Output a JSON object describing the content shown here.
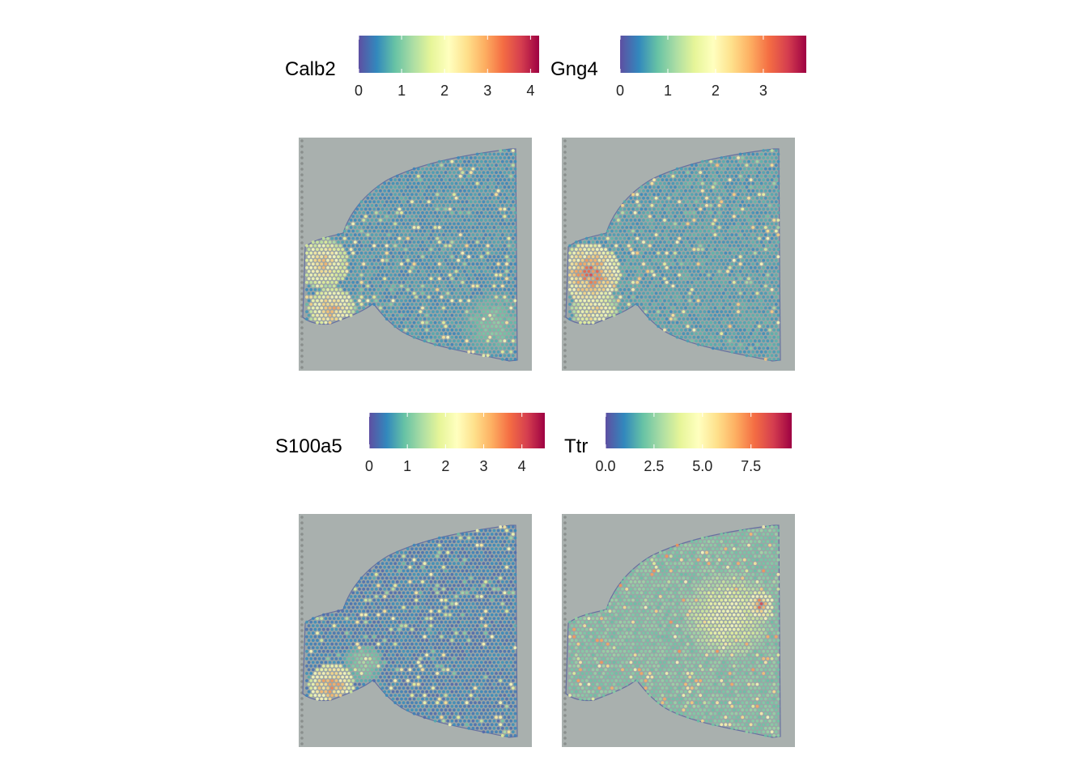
{
  "colormap": [
    "#5e4fa2",
    "#3288bd",
    "#66c2a5",
    "#abdda4",
    "#e6f598",
    "#ffffbf",
    "#fee08b",
    "#fdae61",
    "#f46d43",
    "#d53e4f",
    "#9e0142"
  ],
  "background_color": "#a9b0ae",
  "chart_data": [
    {
      "type": "heatmap",
      "title": "Calb2",
      "legend_title": "Calb2",
      "scale_range": [
        0,
        4.2
      ],
      "ticks": [
        0,
        1,
        2,
        3,
        4
      ],
      "tick_labels": [
        "0",
        "1",
        "2",
        "3",
        "4"
      ],
      "hotspots": [
        {
          "region": "left-lobe-upper",
          "level": 0.75
        },
        {
          "region": "left-lobe-lower",
          "level": 0.85
        },
        {
          "region": "stem-bottom-right",
          "level": 0.3
        }
      ],
      "baseline_level": 0.08
    },
    {
      "type": "heatmap",
      "title": "Gng4",
      "legend_title": "Gng4",
      "scale_range": [
        0,
        3.9
      ],
      "ticks": [
        0,
        1,
        2,
        3
      ],
      "tick_labels": [
        "0",
        "1",
        "2",
        "3"
      ],
      "hotspots": [
        {
          "region": "left-lobe-center",
          "level": 0.95
        },
        {
          "region": "left-lobe-lower",
          "level": 0.7
        }
      ],
      "baseline_level": 0.1
    },
    {
      "type": "heatmap",
      "title": "S100a5",
      "legend_title": "S100a5",
      "scale_range": [
        0,
        4.6
      ],
      "ticks": [
        0,
        1,
        2,
        3,
        4
      ],
      "tick_labels": [
        "0",
        "1",
        "2",
        "3",
        "4"
      ],
      "hotspots": [
        {
          "region": "left-lobe-lower",
          "level": 0.9
        },
        {
          "region": "neck",
          "level": 0.35
        }
      ],
      "baseline_level": 0.04
    },
    {
      "type": "heatmap",
      "title": "Ttr",
      "legend_title": "Ttr",
      "scale_range": [
        0,
        9.6
      ],
      "ticks": [
        0,
        2.5,
        5,
        7.5
      ],
      "tick_labels": [
        "0.0",
        "2.5",
        "5.0",
        "7.5"
      ],
      "hotspots": [
        {
          "region": "right-center-band",
          "level": 0.6
        },
        {
          "region": "right-upper-spot",
          "level": 0.95
        }
      ],
      "baseline_level": 0.2
    }
  ]
}
